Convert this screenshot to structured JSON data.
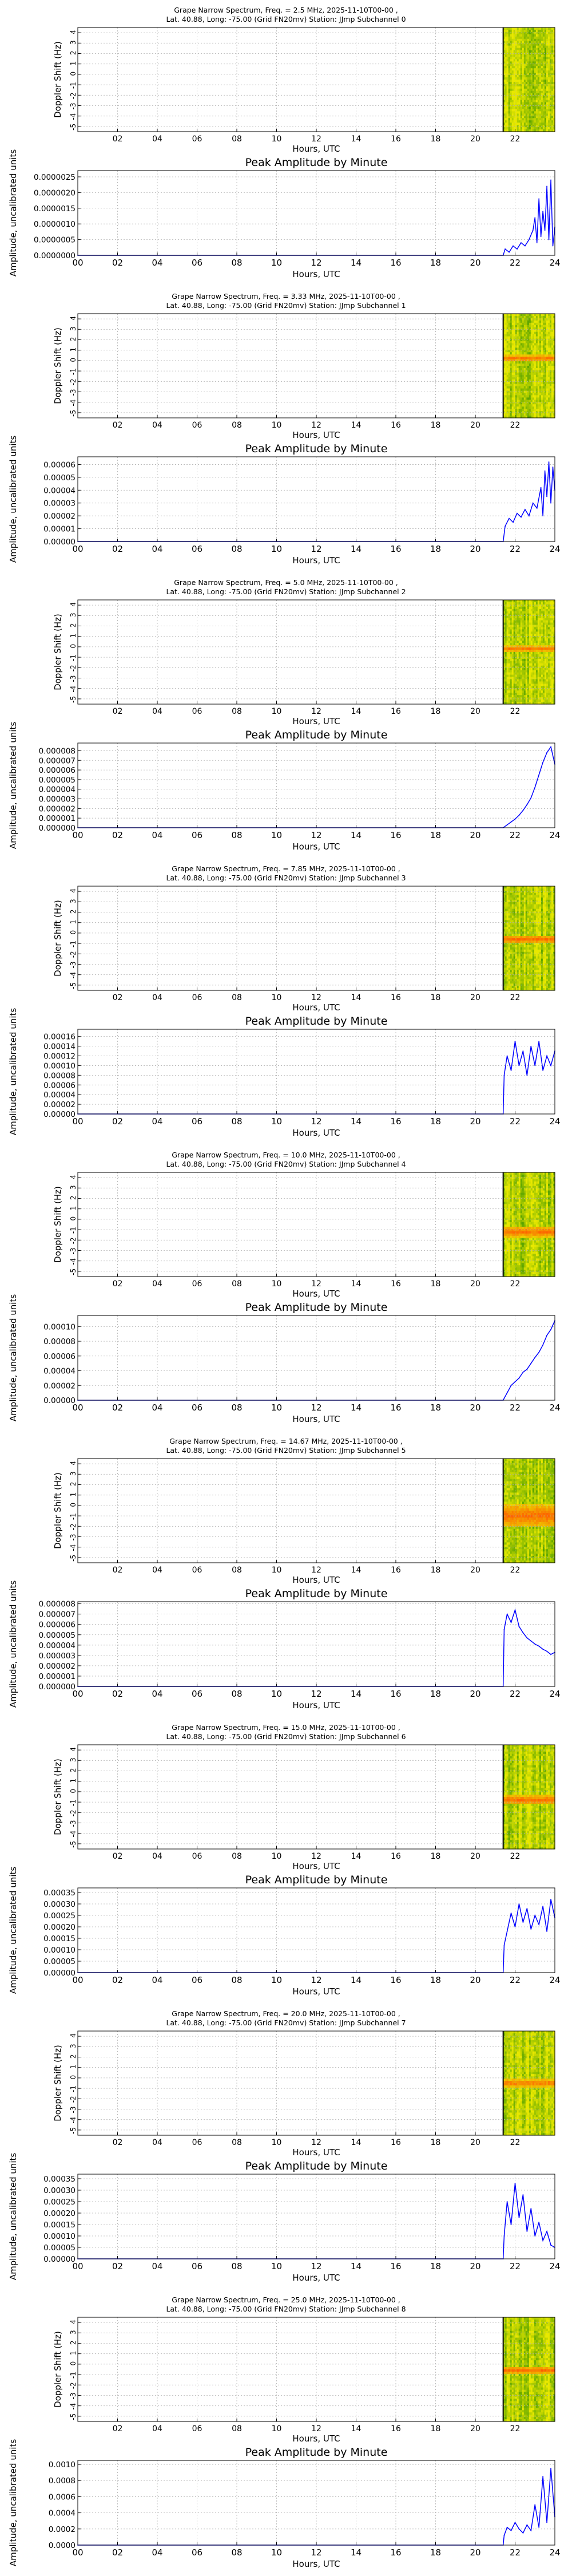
{
  "colors": {
    "series_line": "#0000ff",
    "grid": "#b0b0b0",
    "axes": "#000000",
    "spec_high": "#e8e800",
    "spec_low": "#2f8f00",
    "spec_signal": "#ff5a00",
    "spec_cursor": "#000000"
  },
  "chart_data": [
    {
      "type": "heatmap",
      "title_line1": "Grape Narrow Spectrum, Freq. = 2.5 MHz, 2025-11-10T00-00 ,",
      "title_line2": "Lat. 40.88, Long: -75.00 (Grid FN20mv) Station: JJmp Subchannel 0",
      "ylabel": "Doppler Shift (Hz)",
      "xlabel": "Hours, UTC",
      "yticks": [
        "4",
        "3",
        "2",
        "1",
        "0",
        "-1",
        "-2",
        "-3",
        "-4",
        "-5"
      ],
      "xticks": [
        "02",
        "04",
        "06",
        "08",
        "10",
        "12",
        "14",
        "16",
        "18",
        "20",
        "22"
      ],
      "data_start_hour": 21.4,
      "signal_hz": null,
      "signal_width_hz": 0
    },
    {
      "type": "line",
      "title": "Peak Amplitude by Minute",
      "ylabel": "Amplitude, uncalibrated units",
      "xlabel": "Hours, UTC",
      "xticks": [
        "00",
        "02",
        "04",
        "06",
        "08",
        "10",
        "12",
        "14",
        "16",
        "18",
        "20",
        "22",
        "24"
      ],
      "yticks": [
        "0.0000000",
        "0.0000005",
        "0.0000010",
        "0.0000015",
        "0.0000020",
        "0.0000025"
      ],
      "ylim": [
        0,
        2.7e-06
      ],
      "series": [
        {
          "x": [
            0,
            21.4,
            21.5,
            21.7,
            21.9,
            22.1,
            22.3,
            22.5,
            22.7,
            22.9,
            23.0,
            23.1,
            23.2,
            23.3,
            23.4,
            23.5,
            23.6,
            23.7,
            23.8,
            23.9,
            24.0
          ],
          "y": [
            0,
            0,
            2e-07,
            1e-07,
            3e-07,
            2e-07,
            4e-07,
            3e-07,
            5e-07,
            8e-07,
            1.2e-06,
            4e-07,
            1.8e-06,
            6e-07,
            1.4e-06,
            8e-07,
            2.2e-06,
            5e-07,
            2.4e-06,
            3e-07,
            9e-07
          ]
        }
      ]
    },
    {
      "type": "heatmap",
      "title_line1": "Grape Narrow Spectrum, Freq. = 3.33 MHz, 2025-11-10T00-00 ,",
      "title_line2": "Lat. 40.88, Long: -75.00 (Grid FN20mv) Station: JJmp Subchannel 1",
      "ylabel": "Doppler Shift (Hz)",
      "xlabel": "Hours, UTC",
      "yticks": [
        "4",
        "3",
        "2",
        "1",
        "0",
        "-1",
        "-2",
        "-3",
        "-4",
        "-5"
      ],
      "xticks": [
        "02",
        "04",
        "06",
        "08",
        "10",
        "12",
        "14",
        "16",
        "18",
        "20",
        "22"
      ],
      "data_start_hour": 21.4,
      "signal_hz": 0.2,
      "signal_width_hz": 0.6
    },
    {
      "type": "line",
      "title": "Peak Amplitude by Minute",
      "ylabel": "Amplitude, uncalibrated units",
      "xlabel": "Hours, UTC",
      "xticks": [
        "00",
        "02",
        "04",
        "06",
        "08",
        "10",
        "12",
        "14",
        "16",
        "18",
        "20",
        "22",
        "24"
      ],
      "yticks": [
        "0.00000",
        "0.00001",
        "0.00002",
        "0.00003",
        "0.00004",
        "0.00005",
        "0.00006"
      ],
      "ylim": [
        0,
        6.6e-05
      ],
      "series": [
        {
          "x": [
            0,
            21.4,
            21.5,
            21.7,
            21.9,
            22.1,
            22.3,
            22.5,
            22.7,
            22.9,
            23.1,
            23.3,
            23.4,
            23.5,
            23.6,
            23.7,
            23.8,
            23.9,
            24.0
          ],
          "y": [
            0,
            0,
            1.2e-05,
            1.8e-05,
            1.5e-05,
            2.2e-05,
            1.9e-05,
            2.5e-05,
            2e-05,
            3e-05,
            2.6e-05,
            4.2e-05,
            2e-05,
            5.5e-05,
            3.5e-05,
            6.2e-05,
            3e-05,
            5.8e-05,
            4e-05
          ]
        }
      ]
    },
    {
      "type": "heatmap",
      "title_line1": "Grape Narrow Spectrum, Freq. = 5.0 MHz, 2025-11-10T00-00 ,",
      "title_line2": "Lat. 40.88, Long: -75.00 (Grid FN20mv) Station: JJmp Subchannel 2",
      "ylabel": "Doppler Shift (Hz)",
      "xlabel": "Hours, UTC",
      "yticks": [
        "4",
        "3",
        "2",
        "1",
        "0",
        "-1",
        "-2",
        "-3",
        "-4",
        "-5"
      ],
      "xticks": [
        "02",
        "04",
        "06",
        "08",
        "10",
        "12",
        "14",
        "16",
        "18",
        "20",
        "22"
      ],
      "data_start_hour": 21.4,
      "signal_hz": -0.2,
      "signal_width_hz": 0.5
    },
    {
      "type": "line",
      "title": "Peak Amplitude by Minute",
      "ylabel": "Amplitude, uncalibrated units",
      "xlabel": "Hours, UTC",
      "xticks": [
        "00",
        "02",
        "04",
        "06",
        "08",
        "10",
        "12",
        "14",
        "16",
        "18",
        "20",
        "22",
        "24"
      ],
      "yticks": [
        "0.000000",
        "0.000001",
        "0.000002",
        "0.000003",
        "0.000004",
        "0.000005",
        "0.000006",
        "0.000007",
        "0.000008"
      ],
      "ylim": [
        0,
        8.8e-06
      ],
      "series": [
        {
          "x": [
            0,
            21.4,
            21.6,
            21.8,
            22.0,
            22.2,
            22.4,
            22.6,
            22.8,
            23.0,
            23.2,
            23.4,
            23.6,
            23.8,
            24.0
          ],
          "y": [
            0,
            0,
            3e-07,
            6e-07,
            9e-07,
            1.3e-06,
            1.8e-06,
            2.4e-06,
            3.1e-06,
            4.2e-06,
            5.5e-06,
            6.8e-06,
            7.8e-06,
            8.4e-06,
            6.6e-06
          ]
        }
      ]
    },
    {
      "type": "heatmap",
      "title_line1": "Grape Narrow Spectrum, Freq. = 7.85 MHz, 2025-11-10T00-00 ,",
      "title_line2": "Lat. 40.88, Long: -75.00 (Grid FN20mv) Station: JJmp Subchannel 3",
      "ylabel": "Doppler Shift (Hz)",
      "xlabel": "Hours, UTC",
      "yticks": [
        "4",
        "3",
        "2",
        "1",
        "0",
        "-1",
        "-2",
        "-3",
        "-4",
        "-5"
      ],
      "xticks": [
        "02",
        "04",
        "06",
        "08",
        "10",
        "12",
        "14",
        "16",
        "18",
        "20",
        "22"
      ],
      "data_start_hour": 21.4,
      "signal_hz": -0.6,
      "signal_width_hz": 0.8
    },
    {
      "type": "line",
      "title": "Peak Amplitude by Minute",
      "ylabel": "Amplitude, uncalibrated units",
      "xlabel": "Hours, UTC",
      "xticks": [
        "00",
        "02",
        "04",
        "06",
        "08",
        "10",
        "12",
        "14",
        "16",
        "18",
        "20",
        "22",
        "24"
      ],
      "yticks": [
        "0.00000",
        "0.00002",
        "0.00004",
        "0.00006",
        "0.00008",
        "0.00010",
        "0.00012",
        "0.00014",
        "0.00016"
      ],
      "ylim": [
        0,
        0.000175
      ],
      "series": [
        {
          "x": [
            0,
            21.4,
            21.45,
            21.6,
            21.8,
            22.0,
            22.2,
            22.4,
            22.6,
            22.8,
            23.0,
            23.2,
            23.4,
            23.6,
            23.8,
            24.0
          ],
          "y": [
            0,
            0,
            8e-05,
            0.00012,
            9e-05,
            0.00015,
            0.0001,
            0.00013,
            8e-05,
            0.00014,
            0.0001,
            0.00015,
            9e-05,
            0.00012,
            0.0001,
            0.00013
          ]
        }
      ]
    },
    {
      "type": "heatmap",
      "title_line1": "Grape Narrow Spectrum, Freq. = 10.0 MHz, 2025-11-10T00-00 ,",
      "title_line2": "Lat. 40.88, Long: -75.00 (Grid FN20mv) Station: JJmp Subchannel 4",
      "ylabel": "Doppler Shift (Hz)",
      "xlabel": "Hours, UTC",
      "yticks": [
        "4",
        "3",
        "2",
        "1",
        "0",
        "-1",
        "-2",
        "-3",
        "-4",
        "-5"
      ],
      "xticks": [
        "02",
        "04",
        "06",
        "08",
        "10",
        "12",
        "14",
        "16",
        "18",
        "20",
        "22"
      ],
      "data_start_hour": 21.4,
      "signal_hz": -1.2,
      "signal_width_hz": 1.0
    },
    {
      "type": "line",
      "title": "Peak Amplitude by Minute",
      "ylabel": "Amplitude, uncalibrated units",
      "xlabel": "Hours, UTC",
      "xticks": [
        "00",
        "02",
        "04",
        "06",
        "08",
        "10",
        "12",
        "14",
        "16",
        "18",
        "20",
        "22",
        "24"
      ],
      "yticks": [
        "0.00000",
        "0.00002",
        "0.00004",
        "0.00006",
        "0.00008",
        "0.00010"
      ],
      "ylim": [
        0,
        0.000115
      ],
      "series": [
        {
          "x": [
            0,
            21.4,
            21.6,
            21.8,
            22.0,
            22.2,
            22.4,
            22.6,
            22.8,
            23.0,
            23.2,
            23.4,
            23.6,
            23.8,
            24.0
          ],
          "y": [
            0,
            0,
            1e-05,
            2e-05,
            2.5e-05,
            3e-05,
            3.8e-05,
            4.2e-05,
            5e-05,
            5.8e-05,
            6.5e-05,
            7.5e-05,
            8.8e-05,
            9.6e-05,
            0.000108
          ]
        }
      ]
    },
    {
      "type": "heatmap",
      "title_line1": "Grape Narrow Spectrum, Freq. = 14.67 MHz, 2025-11-10T00-00 ,",
      "title_line2": "Lat. 40.88, Long: -75.00 (Grid FN20mv) Station: JJmp Subchannel 5",
      "ylabel": "Doppler Shift (Hz)",
      "xlabel": "Hours, UTC",
      "yticks": [
        "4",
        "3",
        "2",
        "1",
        "0",
        "-1",
        "-2",
        "-3",
        "-4",
        "-5"
      ],
      "xticks": [
        "02",
        "04",
        "06",
        "08",
        "10",
        "12",
        "14",
        "16",
        "18",
        "20",
        "22"
      ],
      "data_start_hour": 21.4,
      "signal_hz": -1.0,
      "signal_width_hz": 2.2
    },
    {
      "type": "line",
      "title": "Peak Amplitude by Minute",
      "ylabel": "Amplitude, uncalibrated units",
      "xlabel": "Hours, UTC",
      "xticks": [
        "00",
        "02",
        "04",
        "06",
        "08",
        "10",
        "12",
        "14",
        "16",
        "18",
        "20",
        "22",
        "24"
      ],
      "yticks": [
        "0.000000",
        "0.000001",
        "0.000002",
        "0.000003",
        "0.000004",
        "0.000005",
        "0.000006",
        "0.000007",
        "0.000008"
      ],
      "ylim": [
        0,
        8.2e-06
      ],
      "series": [
        {
          "x": [
            0,
            21.4,
            21.45,
            21.6,
            21.8,
            22.0,
            22.2,
            22.4,
            22.6,
            22.8,
            23.0,
            23.2,
            23.4,
            23.6,
            23.8,
            24.0
          ],
          "y": [
            0,
            0,
            5.5e-06,
            7e-06,
            6.2e-06,
            7.4e-06,
            5.8e-06,
            5.2e-06,
            4.7e-06,
            4.4e-06,
            4.1e-06,
            3.9e-06,
            3.6e-06,
            3.4e-06,
            3.1e-06,
            3.3e-06
          ]
        }
      ]
    },
    {
      "type": "heatmap",
      "title_line1": "Grape Narrow Spectrum, Freq. = 15.0 MHz, 2025-11-10T00-00 ,",
      "title_line2": "Lat. 40.88, Long: -75.00 (Grid FN20mv) Station: JJmp Subchannel 6",
      "ylabel": "Doppler Shift (Hz)",
      "xlabel": "Hours, UTC",
      "yticks": [
        "4",
        "3",
        "2",
        "1",
        "0",
        "-1",
        "-2",
        "-3",
        "-4",
        "-5"
      ],
      "xticks": [
        "02",
        "04",
        "06",
        "08",
        "10",
        "12",
        "14",
        "16",
        "18",
        "20",
        "22"
      ],
      "data_start_hour": 21.4,
      "signal_hz": -0.8,
      "signal_width_hz": 0.9
    },
    {
      "type": "line",
      "title": "Peak Amplitude by Minute",
      "ylabel": "Amplitude, uncalibrated units",
      "xlabel": "Hours, UTC",
      "xticks": [
        "00",
        "02",
        "04",
        "06",
        "08",
        "10",
        "12",
        "14",
        "16",
        "18",
        "20",
        "22",
        "24"
      ],
      "yticks": [
        "0.00000",
        "0.00005",
        "0.00010",
        "0.00015",
        "0.00020",
        "0.00025",
        "0.00030",
        "0.00035"
      ],
      "ylim": [
        0,
        0.00037
      ],
      "series": [
        {
          "x": [
            0,
            21.4,
            21.45,
            21.6,
            21.8,
            22.0,
            22.2,
            22.4,
            22.6,
            22.8,
            23.0,
            23.2,
            23.4,
            23.6,
            23.8,
            24.0
          ],
          "y": [
            0,
            0,
            0.00012,
            0.00018,
            0.00026,
            0.0002,
            0.0003,
            0.00022,
            0.00028,
            0.00019,
            0.00025,
            0.00021,
            0.00029,
            0.00018,
            0.00032,
            0.00024
          ]
        }
      ]
    },
    {
      "type": "heatmap",
      "title_line1": "Grape Narrow Spectrum, Freq. = 20.0 MHz, 2025-11-10T00-00 ,",
      "title_line2": "Lat. 40.88, Long: -75.00 (Grid FN20mv) Station: JJmp Subchannel 7",
      "ylabel": "Doppler Shift (Hz)",
      "xlabel": "Hours, UTC",
      "yticks": [
        "4",
        "3",
        "2",
        "1",
        "0",
        "-1",
        "-2",
        "-3",
        "-4",
        "-5"
      ],
      "xticks": [
        "02",
        "04",
        "06",
        "08",
        "10",
        "12",
        "14",
        "16",
        "18",
        "20",
        "22"
      ],
      "data_start_hour": 21.4,
      "signal_hz": -0.5,
      "signal_width_hz": 0.7
    },
    {
      "type": "line",
      "title": "Peak Amplitude by Minute",
      "ylabel": "Amplitude, uncalibrated units",
      "xlabel": "Hours, UTC",
      "xticks": [
        "00",
        "02",
        "04",
        "06",
        "08",
        "10",
        "12",
        "14",
        "16",
        "18",
        "20",
        "22",
        "24"
      ],
      "yticks": [
        "0.00000",
        "0.00005",
        "0.00010",
        "0.00015",
        "0.00020",
        "0.00025",
        "0.00030",
        "0.00035"
      ],
      "ylim": [
        0,
        0.00037
      ],
      "series": [
        {
          "x": [
            0,
            21.4,
            21.45,
            21.6,
            21.8,
            22.0,
            22.2,
            22.4,
            22.6,
            22.8,
            23.0,
            23.2,
            23.4,
            23.6,
            23.8,
            24.0
          ],
          "y": [
            0,
            0,
            0.0001,
            0.00025,
            0.00015,
            0.00033,
            0.00018,
            0.00028,
            0.00012,
            0.00022,
            0.0001,
            0.00016,
            8e-05,
            0.00012,
            6e-05,
            5e-05
          ]
        }
      ]
    },
    {
      "type": "heatmap",
      "title_line1": "Grape Narrow Spectrum, Freq. = 25.0 MHz, 2025-11-10T00-00 ,",
      "title_line2": "Lat. 40.88, Long: -75.00 (Grid FN20mv) Station: JJmp Subchannel 8",
      "ylabel": "Doppler Shift (Hz)",
      "xlabel": "Hours, UTC",
      "yticks": [
        "4",
        "3",
        "2",
        "1",
        "0",
        "-1",
        "-2",
        "-3",
        "-4",
        "-5"
      ],
      "xticks": [
        "02",
        "04",
        "06",
        "08",
        "10",
        "12",
        "14",
        "16",
        "18",
        "20",
        "22"
      ],
      "data_start_hour": 21.4,
      "signal_hz": -0.6,
      "signal_width_hz": 0.6
    },
    {
      "type": "line",
      "title": "Peak Amplitude by Minute",
      "ylabel": "Amplitude, uncalibrated units",
      "xlabel": "Hours, UTC",
      "xticks": [
        "00",
        "02",
        "04",
        "06",
        "08",
        "10",
        "12",
        "14",
        "16",
        "18",
        "20",
        "22",
        "24"
      ],
      "yticks": [
        "0.0000",
        "0.0002",
        "0.0004",
        "0.0006",
        "0.0008",
        "0.0010"
      ],
      "ylim": [
        0,
        0.00105
      ],
      "series": [
        {
          "x": [
            0,
            21.4,
            21.45,
            21.6,
            21.8,
            22.0,
            22.2,
            22.4,
            22.6,
            22.8,
            23.0,
            23.2,
            23.4,
            23.6,
            23.8,
            24.0
          ],
          "y": [
            0,
            0,
            0.00012,
            0.00022,
            0.00018,
            0.00028,
            0.0002,
            0.00015,
            0.00025,
            0.00018,
            0.0005,
            0.00022,
            0.00085,
            0.00028,
            0.00095,
            0.00035
          ]
        }
      ]
    }
  ]
}
